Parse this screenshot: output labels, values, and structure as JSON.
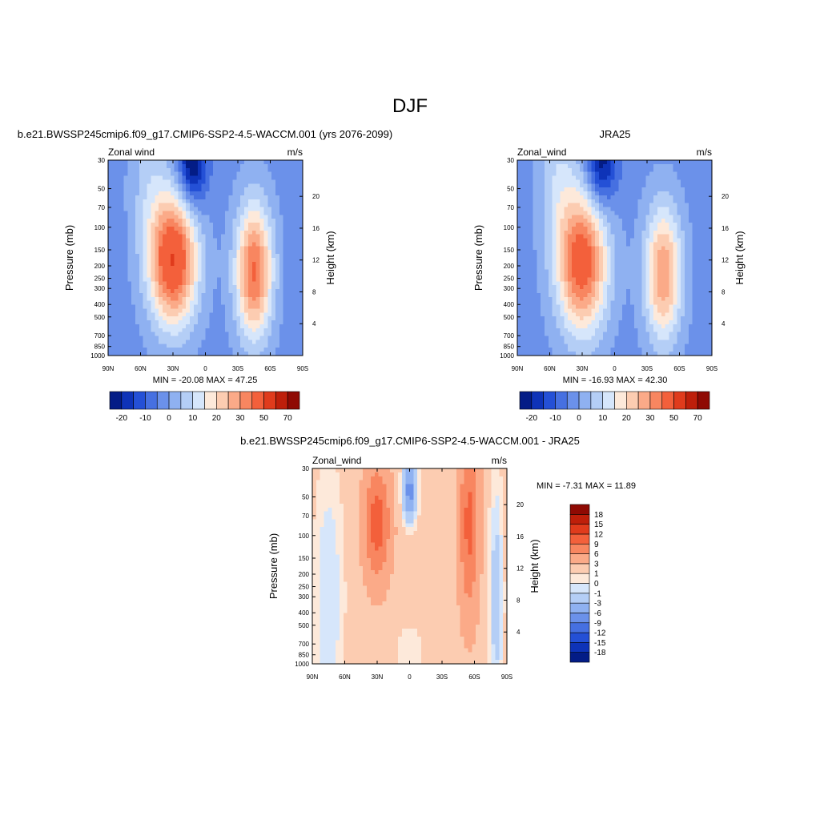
{
  "page_title": "DJF",
  "colors": {
    "pos": [
      "#fde9da",
      "#fcccb1",
      "#fbaa88",
      "#f88660",
      "#f3603b",
      "#e03b1c",
      "#be1f0a",
      "#8f0a03"
    ],
    "neg": [
      "#d6e6fb",
      "#b4cef6",
      "#8fb1f1",
      "#6b91ea",
      "#4670e1",
      "#2450d6",
      "#0e33b8",
      "#031c86"
    ]
  },
  "chart_data": [
    {
      "id": "model",
      "type": "heatmap",
      "title": "b.e21.BWSSP245cmip6.f09_g17.CMIP6-SSP2-4.5-WACCM.001 (yrs 2076-2099)",
      "left_label": "Zonal wind",
      "right_label": "m/s",
      "ylabel": "Pressure (mb)",
      "y2label": "Height (km)",
      "x_ticks": [
        "90N",
        "60N",
        "30N",
        "0",
        "30S",
        "60S",
        "90S"
      ],
      "y_ticks": [
        "30",
        "50",
        "70",
        "100",
        "150",
        "200",
        "250",
        "300",
        "400",
        "500",
        "700",
        "850",
        "1000"
      ],
      "y2_ticks": [
        "20",
        "16",
        "12",
        "8",
        "4"
      ],
      "stats": "MIN = -20.08  MAX =  47.25",
      "colorbar": {
        "labels": [
          "-20",
          "-10",
          "0",
          "10",
          "20",
          "30",
          "50",
          "70"
        ],
        "levels": [
          -30,
          -25,
          -20,
          -15,
          -10,
          -5,
          0,
          5,
          10,
          15,
          20,
          25,
          30,
          40,
          50,
          60,
          70
        ],
        "colors": [
          "#031c86",
          "#0e33b8",
          "#2450d6",
          "#4670e1",
          "#6b91ea",
          "#8fb1f1",
          "#b4cef6",
          "#d6e6fb",
          "#fde9da",
          "#fcccb1",
          "#fbaa88",
          "#f88660",
          "#f3603b",
          "#e03b1c",
          "#be1f0a",
          "#8f0a03"
        ]
      },
      "fields": [
        {
          "kind": "bg",
          "value": -7
        },
        {
          "kind": "blob",
          "lat": 30,
          "p": 180,
          "value": 47,
          "dx": 22,
          "dy": 1.15
        },
        {
          "kind": "blob",
          "lat": -45,
          "p": 220,
          "value": 38,
          "dx": 17,
          "dy": 1.2
        },
        {
          "kind": "blob",
          "lat": 52,
          "p": 40,
          "value": 8,
          "dx": 18,
          "dy": 1.4
        },
        {
          "kind": "blob",
          "lat": 12,
          "p": 30,
          "value": -25,
          "dx": 13,
          "dy": 0.8
        },
        {
          "kind": "blob",
          "lat": -82,
          "p": 500,
          "value": -3,
          "dx": 8,
          "dy": 1.4
        }
      ]
    },
    {
      "id": "obs",
      "type": "heatmap",
      "title": "JRA25",
      "left_label": "Zonal_wind",
      "right_label": "m/s",
      "ylabel": "Pressure (mb)",
      "y2label": "Height (km)",
      "x_ticks": [
        "90N",
        "60N",
        "30N",
        "0",
        "30S",
        "60S",
        "90S"
      ],
      "y_ticks": [
        "30",
        "50",
        "70",
        "100",
        "150",
        "200",
        "250",
        "300",
        "400",
        "500",
        "700",
        "850",
        "1000"
      ],
      "y2_ticks": [
        "20",
        "16",
        "12",
        "8",
        "4"
      ],
      "stats": "MIN = -16.93  MAX =  42.30",
      "colorbar": {
        "labels": [
          "-20",
          "-10",
          "0",
          "10",
          "20",
          "30",
          "50",
          "70"
        ],
        "levels": [
          -30,
          -25,
          -20,
          -15,
          -10,
          -5,
          0,
          5,
          10,
          15,
          20,
          25,
          30,
          40,
          50,
          60,
          70
        ],
        "colors": [
          "#031c86",
          "#0e33b8",
          "#2450d6",
          "#4670e1",
          "#6b91ea",
          "#8fb1f1",
          "#b4cef6",
          "#d6e6fb",
          "#fde9da",
          "#fcccb1",
          "#fbaa88",
          "#f88660",
          "#f3603b",
          "#e03b1c",
          "#be1f0a",
          "#8f0a03"
        ]
      },
      "fields": [
        {
          "kind": "bg",
          "value": -7
        },
        {
          "kind": "blob",
          "lat": 30,
          "p": 190,
          "value": 42,
          "dx": 23,
          "dy": 1.25
        },
        {
          "kind": "blob",
          "lat": -45,
          "p": 230,
          "value": 32,
          "dx": 17,
          "dy": 1.2
        },
        {
          "kind": "blob",
          "lat": 52,
          "p": 40,
          "value": 10,
          "dx": 18,
          "dy": 1.4
        },
        {
          "kind": "blob",
          "lat": 12,
          "p": 30,
          "value": -22,
          "dx": 14,
          "dy": 0.8
        }
      ]
    },
    {
      "id": "diff",
      "type": "heatmap",
      "title": "b.e21.BWSSP245cmip6.f09_g17.CMIP6-SSP2-4.5-WACCM.001 - JRA25",
      "left_label": "Zonal_wind",
      "right_label": "m/s",
      "ylabel": "Pressure (mb)",
      "y2label": "Height (km)",
      "x_ticks": [
        "90N",
        "60N",
        "30N",
        "0",
        "30S",
        "60S",
        "90S"
      ],
      "y_ticks": [
        "30",
        "50",
        "70",
        "100",
        "150",
        "200",
        "250",
        "300",
        "400",
        "500",
        "700",
        "850",
        "1000"
      ],
      "y2_ticks": [
        "20",
        "16",
        "12",
        "8",
        "4"
      ],
      "stats": "MIN =  -7.31  MAX =  11.89",
      "colorbar": {
        "labels": [
          "18",
          "15",
          "12",
          "9",
          "6",
          "3",
          "1",
          "0",
          "-1",
          "-3",
          "-6",
          "-9",
          "-12",
          "-15",
          "-18"
        ],
        "levels": [
          -21,
          -18,
          -15,
          -12,
          -9,
          -6,
          -3,
          -1,
          0,
          1,
          3,
          6,
          9,
          12,
          15,
          18,
          21
        ],
        "colors": [
          "#031c86",
          "#0e33b8",
          "#2450d6",
          "#4670e1",
          "#6b91ea",
          "#8fb1f1",
          "#b4cef6",
          "#d6e6fb",
          "#fde9da",
          "#fcccb1",
          "#fbaa88",
          "#f88660",
          "#f3603b",
          "#e03b1c",
          "#be1f0a",
          "#8f0a03"
        ]
      },
      "fields": [
        {
          "kind": "bg",
          "value": 2
        },
        {
          "kind": "blob",
          "lat": 30,
          "p": 80,
          "value": 9,
          "dx": 12,
          "dy": 1.0
        },
        {
          "kind": "blob",
          "lat": -55,
          "p": 80,
          "value": 8,
          "dx": 9,
          "dy": 1.6
        },
        {
          "kind": "blob",
          "lat": 0,
          "p": 45,
          "value": -9,
          "dx": 7,
          "dy": 0.55
        },
        {
          "kind": "blob",
          "lat": -80,
          "p": 300,
          "value": -4,
          "dx": 7,
          "dy": 2.2
        },
        {
          "kind": "blob",
          "lat": 75,
          "p": 300,
          "value": -3,
          "dx": 15,
          "dy": 2.5
        },
        {
          "kind": "blob",
          "lat": 0,
          "p": 800,
          "value": -2,
          "dx": 15,
          "dy": 0.5
        }
      ]
    }
  ]
}
